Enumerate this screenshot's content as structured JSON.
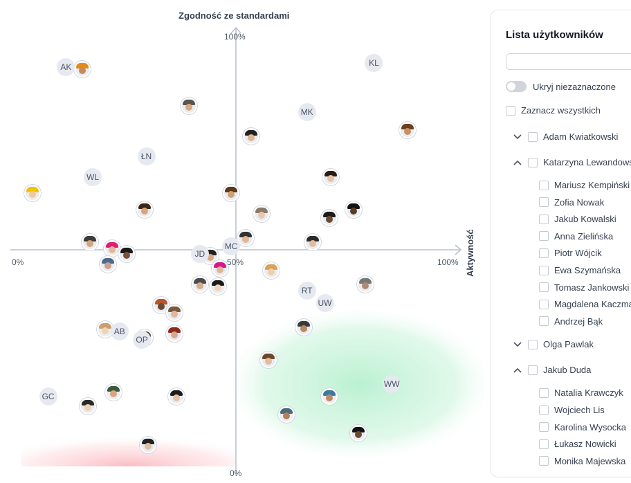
{
  "chart": {
    "y_title": "Zgodność ze standardami",
    "x_title": "Aktywność",
    "y_top_label": "100%",
    "y_bottom_label": "0%",
    "x_left_label": "0%",
    "x_mid_label": "50%",
    "x_right_label": "100%"
  },
  "chart_data": {
    "type": "scatter",
    "x_axis": "Aktywność",
    "y_axis": "Zgodność ze standardami",
    "xlim": [
      0,
      100
    ],
    "ylim": [
      0,
      100
    ],
    "highlight_zones": [
      "green",
      "red"
    ],
    "initials": [
      {
        "label": "AK",
        "x": 12,
        "y": 95
      },
      {
        "label": "KL",
        "x": 81,
        "y": 96
      },
      {
        "label": "MK",
        "x": 66,
        "y": 84
      },
      {
        "label": "ŁN",
        "x": 30,
        "y": 73
      },
      {
        "label": "WL",
        "x": 18,
        "y": 68
      },
      {
        "label": "MC",
        "x": 49,
        "y": 51
      },
      {
        "label": "JD",
        "x": 42,
        "y": 49
      },
      {
        "label": "RT",
        "x": 66,
        "y": 40
      },
      {
        "label": "UW",
        "x": 70,
        "y": 37
      },
      {
        "label": "AB",
        "x": 24,
        "y": 30
      },
      {
        "label": "OP",
        "x": 29,
        "y": 28
      },
      {
        "label": "WW",
        "x": 85,
        "y": 17
      },
      {
        "label": "GC",
        "x": 8,
        "y": 14
      }
    ],
    "avatars": [
      {
        "x": 15.6,
        "y": 94.5,
        "skin": "#c68b5c",
        "hair": "#e6891a"
      },
      {
        "x": 39.6,
        "y": 85.5,
        "skin": "#d9a87e",
        "hair": "#555555"
      },
      {
        "x": 53.5,
        "y": 78,
        "skin": "#e0b48f",
        "hair": "#222222"
      },
      {
        "x": 88.5,
        "y": 79.5,
        "skin": "#c99066",
        "hair": "#6b3e1f"
      },
      {
        "x": 71.3,
        "y": 68,
        "skin": "#e8c2a0",
        "hair": "#2b1b10"
      },
      {
        "x": 4.5,
        "y": 64,
        "skin": "#f0c8a0",
        "hair": "#f2c400"
      },
      {
        "x": 71,
        "y": 58,
        "skin": "#6b4a34",
        "hair": "#1c1c1c"
      },
      {
        "x": 49,
        "y": 64,
        "skin": "#d0a070",
        "hair": "#5a3a1a"
      },
      {
        "x": 29.6,
        "y": 60,
        "skin": "#d8a47a",
        "hair": "#3a2616"
      },
      {
        "x": 55.8,
        "y": 59,
        "skin": "#eac7aa",
        "hair": "#8a7a6a"
      },
      {
        "x": 76.5,
        "y": 60,
        "skin": "#5a3b24",
        "hair": "#111111"
      },
      {
        "x": 17.4,
        "y": 52,
        "skin": "#d6a57c",
        "hair": "#3b3b3b"
      },
      {
        "x": 22.3,
        "y": 50.5,
        "skin": "#e5b899",
        "hair": "#e11d74"
      },
      {
        "x": 25.6,
        "y": 49,
        "skin": "#7a5236",
        "hair": "#1a1a1a"
      },
      {
        "x": 21.4,
        "y": 46.5,
        "skin": "#c8a28a",
        "hair": "#4a6a8a"
      },
      {
        "x": 52.3,
        "y": 53,
        "skin": "#e2b794",
        "hair": "#333333"
      },
      {
        "x": 67.3,
        "y": 52,
        "skin": "#e5bc97",
        "hair": "#2a2a2a"
      },
      {
        "x": 44.3,
        "y": 48.5,
        "skin": "#d8a780",
        "hair": "#222222"
      },
      {
        "x": 46.5,
        "y": 45.5,
        "skin": "#e6b39a",
        "hair": "#d61a8c"
      },
      {
        "x": 58,
        "y": 45,
        "skin": "#f0d0a8",
        "hair": "#d9a25a"
      },
      {
        "x": 42,
        "y": 41.5,
        "skin": "#d6ad88",
        "hair": "#4b4b4b"
      },
      {
        "x": 46,
        "y": 41,
        "skin": "#f1d2bd",
        "hair": "#1a1a1a"
      },
      {
        "x": 79,
        "y": 41.5,
        "skin": "#b08a70",
        "hair": "#777777"
      },
      {
        "x": 33.3,
        "y": 36.5,
        "skin": "#6a4a30",
        "hair": "#b8562a"
      },
      {
        "x": 36.3,
        "y": 34.5,
        "skin": "#e1b89c",
        "hair": "#7a5a3a"
      },
      {
        "x": 20.7,
        "y": 30.5,
        "skin": "#f0d3b0",
        "hair": "#c8a070"
      },
      {
        "x": 29.6,
        "y": 28.5,
        "skin": "#e6c0a0",
        "hair": "#5a4030"
      },
      {
        "x": 36.3,
        "y": 29.5,
        "skin": "#d9a88a",
        "hair": "#8a2a1a"
      },
      {
        "x": 65.3,
        "y": 31,
        "skin": "#b88a5e",
        "hair": "#3a3a3a"
      },
      {
        "x": 57.4,
        "y": 23,
        "skin": "#e5bb98",
        "hair": "#6a4a2a"
      },
      {
        "x": 22.7,
        "y": 15,
        "skin": "#d9a57d",
        "hair": "#3a5a3a"
      },
      {
        "x": 36.7,
        "y": 14,
        "skin": "#e7c1a3",
        "hair": "#1c1c1c"
      },
      {
        "x": 16.9,
        "y": 11.5,
        "skin": "#f0d0b5",
        "hair": "#2a2a2a"
      },
      {
        "x": 71,
        "y": 14,
        "skin": "#c08a60",
        "hair": "#3a7aa0"
      },
      {
        "x": 61.4,
        "y": 9.5,
        "skin": "#b47e58",
        "hair": "#4a6a7a"
      },
      {
        "x": 77.5,
        "y": 5,
        "skin": "#6a4a32",
        "hair": "#111111"
      },
      {
        "x": 30.4,
        "y": 2,
        "skin": "#e0c0a0",
        "hair": "#222222"
      }
    ]
  },
  "panel": {
    "title": "Lista użytkowników",
    "search_placeholder": "",
    "search_value": "",
    "toggle_label": "Ukryj niezaznaczone",
    "select_all_label": "Zaznacz wszystkich",
    "groups": [
      {
        "name": "Adam Kwiatkowski",
        "expanded": false,
        "members": []
      },
      {
        "name": "Katarzyna Lewandowska",
        "expanded": true,
        "members": [
          "Mariusz Kempiński",
          "Zofia Nowak",
          "Jakub Kowalski",
          "Anna Zielińska",
          "Piotr Wójcik",
          "Ewa Szymańska",
          "Tomasz Jankowski",
          "Magdalena Kaczmarek",
          "Andrzej Bąk"
        ]
      },
      {
        "name": "Olga Pawlak",
        "expanded": false,
        "members": []
      },
      {
        "name": "Jakub Duda",
        "expanded": true,
        "members": [
          "Natalia Krawczyk",
          "Wojciech Lis",
          "Karolina Wysocka",
          "Łukasz Nowicki",
          "Monika Majewska"
        ]
      }
    ]
  }
}
